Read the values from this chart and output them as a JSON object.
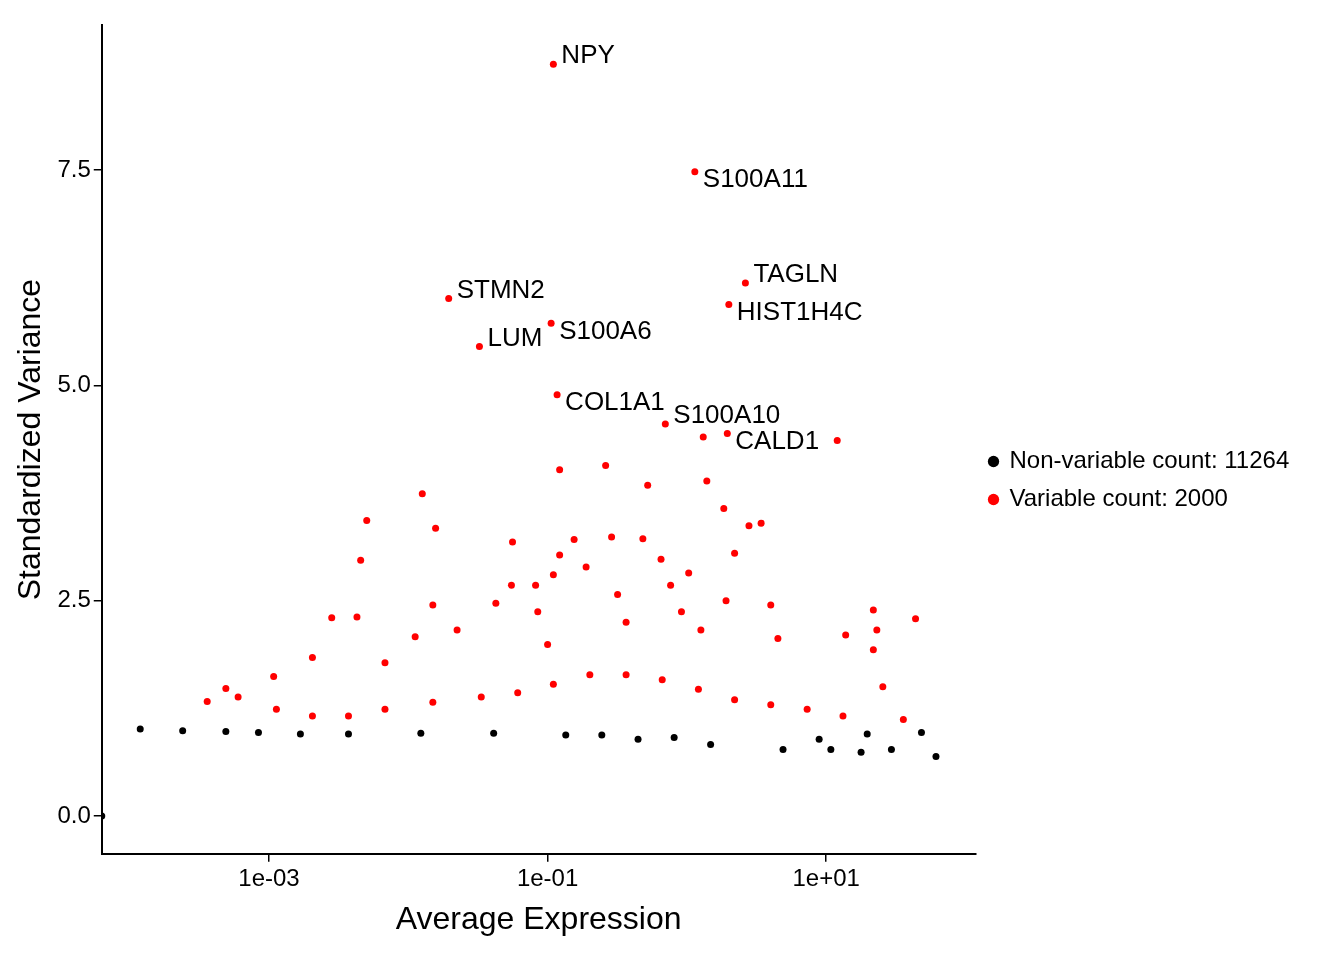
{
  "chart_data": {
    "type": "scatter",
    "xlabel": "Average Expression",
    "ylabel": "Standardized Variance",
    "log": "x",
    "grid": false,
    "legend": "right",
    "marker": "circle",
    "xlim": [
      6.3e-05,
      118
    ],
    "ylim": [
      -0.44,
      9.18
    ],
    "xticks": [
      {
        "value": 0.001,
        "label": "1e-03"
      },
      {
        "value": 0.1,
        "label": "1e-01"
      },
      {
        "value": 10,
        "label": "1e+01"
      }
    ],
    "yticks": [
      {
        "value": 0,
        "label": "0.0"
      },
      {
        "value": 2.5,
        "label": "2.5"
      },
      {
        "value": 5,
        "label": "5.0"
      },
      {
        "value": 7.5,
        "label": "7.5"
      }
    ],
    "series": [
      {
        "name": "Non-variable count: 11264",
        "color": "#000000",
        "x": [
          6.3e-05,
          0.000119,
          0.00024,
          0.00049,
          0.00084,
          0.00168,
          0.00372,
          0.0123,
          0.041,
          0.135,
          0.245,
          0.446,
          0.81,
          1.48,
          4.9,
          8.9,
          10.8,
          17.8,
          19.7,
          29.4,
          48.3,
          61.4
        ],
        "values": [
          0,
          1.01,
          0.99,
          0.98,
          0.97,
          0.95,
          0.95,
          0.96,
          0.96,
          0.94,
          0.94,
          0.89,
          0.91,
          0.83,
          0.77,
          0.89,
          0.77,
          0.74,
          0.95,
          0.77,
          0.97,
          0.69
        ]
      },
      {
        "name": "Variable count: 2000",
        "color": "#ff0000",
        "x": [
          0.00036,
          0.00049,
          0.0006,
          0.00108,
          0.00205,
          0.00282,
          0.00428,
          0.00455,
          0.00503,
          0.0126,
          0.0157,
          0.015,
          0.0112,
          0.0068,
          0.0224,
          0.0425,
          0.055,
          0.056,
          0.082,
          0.085,
          0.1,
          0.11,
          0.122,
          0.122,
          0.155,
          0.189,
          0.261,
          0.288,
          0.318,
          0.366,
          0.483,
          0.523,
          0.652,
          0.764,
          0.914,
          1.03,
          1.26,
          1.31,
          1.39,
          1.84,
          1.91,
          2.2,
          2.79,
          3.41,
          4.0,
          4.5,
          12.0,
          13.8,
          21.8,
          23.1,
          21.8,
          25.5,
          35.8,
          43.8,
          0.00113,
          0.00205,
          0.00372,
          0.0068,
          0.015,
          0.0334,
          0.061,
          0.11,
          0.201,
          0.366,
          0.665,
          1.21,
          2.2,
          4.0,
          7.3,
          13.2,
          0.11,
          1.14,
          2.63,
          2.0,
          0.0195,
          0.106,
          0.0324,
          0.117,
          0.7,
          1.95
        ],
        "values": [
          1.33,
          1.48,
          1.38,
          1.62,
          1.84,
          2.3,
          2.31,
          2.97,
          3.43,
          3.74,
          3.34,
          2.45,
          2.08,
          1.78,
          2.16,
          2.47,
          2.68,
          3.18,
          2.68,
          2.37,
          1.99,
          2.8,
          3.03,
          4.02,
          3.21,
          2.89,
          4.07,
          3.24,
          2.57,
          2.25,
          3.22,
          3.84,
          2.98,
          2.68,
          2.37,
          2.82,
          2.16,
          4.4,
          3.89,
          3.57,
          2.5,
          3.05,
          3.37,
          3.4,
          2.45,
          2.06,
          4.36,
          2.1,
          2.39,
          2.16,
          1.93,
          1.5,
          1.12,
          2.29,
          1.24,
          1.16,
          1.16,
          1.24,
          1.32,
          1.38,
          1.43,
          1.53,
          1.64,
          1.64,
          1.58,
          1.47,
          1.35,
          1.29,
          1.24,
          1.16,
          8.73,
          7.48,
          6.19,
          5.94,
          6.01,
          5.72,
          5.45,
          4.89,
          4.55,
          4.44
        ]
      }
    ],
    "annotations": [
      {
        "text": "NPY",
        "x": 0.11,
        "y": 8.73
      },
      {
        "text": "S100A11",
        "x": 1.14,
        "y": 7.48
      },
      {
        "text": "TAGLN",
        "x": 2.63,
        "y": 6.19
      },
      {
        "text": "HIST1H4C",
        "x": 2.0,
        "y": 5.94
      },
      {
        "text": "STMN2",
        "x": 0.0195,
        "y": 6.01
      },
      {
        "text": "S100A6",
        "x": 0.106,
        "y": 5.72
      },
      {
        "text": "LUM",
        "x": 0.0324,
        "y": 5.45
      },
      {
        "text": "COL1A1",
        "x": 0.117,
        "y": 4.89
      },
      {
        "text": "S100A10",
        "x": 0.7,
        "y": 4.55
      },
      {
        "text": "CALD1",
        "x": 1.95,
        "y": 4.44
      }
    ]
  }
}
